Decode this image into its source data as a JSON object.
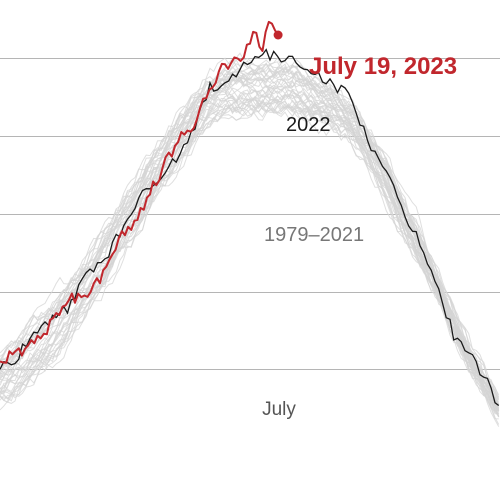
{
  "chart_data": {
    "type": "line",
    "title": "",
    "xlabel": "",
    "ylabel": "",
    "x_axis": {
      "type": "day-of-year",
      "tick_labels": [
        "July"
      ],
      "tick_days": [
        196
      ],
      "range": [
        111,
        271
      ]
    },
    "y_axis": {
      "range": [
        0,
        1.15
      ],
      "gridline_values": [
        0.2,
        0.4,
        0.6,
        0.8,
        1.0
      ]
    },
    "grid": true,
    "legend": "none",
    "series": [
      {
        "name": "July 19, 2023",
        "color": "#c1272d",
        "x": [
          111,
          116,
          122,
          128,
          133,
          139,
          145,
          150,
          156,
          162,
          167,
          173,
          178,
          183,
          187,
          190,
          193,
          195,
          197,
          200
        ],
        "y": [
          0.22,
          0.24,
          0.27,
          0.32,
          0.38,
          0.4,
          0.45,
          0.55,
          0.6,
          0.7,
          0.78,
          0.83,
          0.93,
          0.98,
          0.99,
          1.03,
          1.07,
          1.02,
          1.09,
          1.06
        ]
      },
      {
        "name": "2022",
        "color": "#1a1a1a",
        "x": [
          111,
          116,
          122,
          128,
          133,
          139,
          145,
          150,
          156,
          162,
          167,
          173,
          178,
          183,
          189,
          195,
          200,
          206,
          212,
          217,
          223,
          228,
          234,
          239,
          245,
          251,
          256,
          262,
          268,
          271
        ],
        "y": [
          0.2,
          0.23,
          0.29,
          0.33,
          0.36,
          0.45,
          0.49,
          0.56,
          0.64,
          0.7,
          0.74,
          0.81,
          0.93,
          0.93,
          0.99,
          1.01,
          1.0,
          0.99,
          0.97,
          0.93,
          0.91,
          0.8,
          0.71,
          0.63,
          0.53,
          0.42,
          0.29,
          0.24,
          0.15,
          0.1
        ]
      }
    ],
    "historical_range": {
      "name": "1979–2021",
      "color": "#d4d4d4",
      "x": [
        111,
        116,
        122,
        128,
        133,
        139,
        145,
        150,
        156,
        162,
        167,
        173,
        178,
        183,
        189,
        195,
        200,
        206,
        212,
        217,
        223,
        228,
        234,
        239,
        245,
        251,
        256,
        262,
        268,
        271
      ],
      "low": [
        0.11,
        0.13,
        0.17,
        0.21,
        0.27,
        0.34,
        0.41,
        0.49,
        0.56,
        0.65,
        0.7,
        0.77,
        0.83,
        0.85,
        0.85,
        0.85,
        0.86,
        0.85,
        0.84,
        0.82,
        0.78,
        0.72,
        0.64,
        0.56,
        0.47,
        0.39,
        0.29,
        0.19,
        0.11,
        0.07
      ],
      "high": [
        0.23,
        0.27,
        0.33,
        0.38,
        0.43,
        0.5,
        0.57,
        0.63,
        0.71,
        0.79,
        0.85,
        0.91,
        0.96,
        0.98,
        0.98,
        0.98,
        0.98,
        0.98,
        0.95,
        0.93,
        0.89,
        0.83,
        0.76,
        0.66,
        0.56,
        0.44,
        0.35,
        0.23,
        0.15,
        0.1
      ]
    },
    "annotations": [
      {
        "text": "July 19, 2023",
        "series": "July 19, 2023"
      },
      {
        "text": "2022",
        "series": "2022"
      },
      {
        "text": "1979–2021",
        "series": "1979–2021"
      }
    ]
  }
}
